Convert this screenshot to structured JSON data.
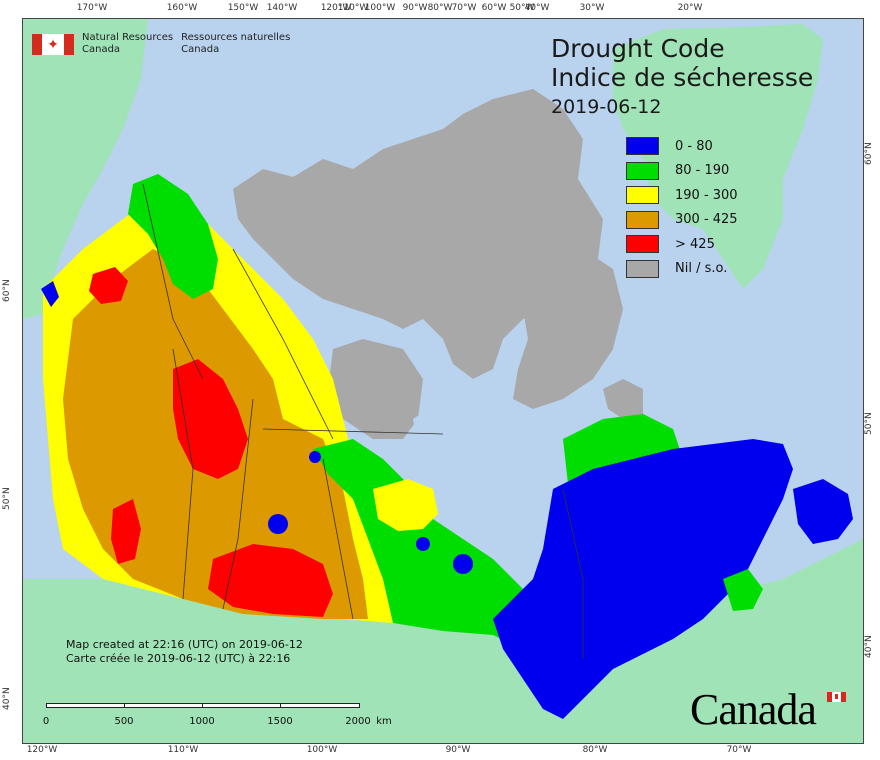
{
  "agency": {
    "en_line1": "Natural Resources",
    "en_line2": "Canada",
    "fr_line1": "Ressources naturelles",
    "fr_line2": "Canada"
  },
  "title": {
    "line1": "Drought Code",
    "line2": "Indice de sécheresse",
    "date": "2019-06-12"
  },
  "legend": [
    {
      "label": "0 - 80",
      "color": "#0000ee"
    },
    {
      "label": "80 - 190",
      "color": "#00dd00"
    },
    {
      "label": "190 - 300",
      "color": "#ffff00"
    },
    {
      "label": "300 - 425",
      "color": "#dd9900"
    },
    {
      "label": "> 425",
      "color": "#ff0000"
    },
    {
      "label": "Nil / s.o.",
      "color": "#a8a8a8"
    }
  ],
  "note": {
    "line1": "Map created at 22:16 (UTC) on 2019-06-12",
    "line2": "Carte créée le 2019-06-12 (UTC) à 22:16"
  },
  "scalebar": {
    "labels": [
      "0",
      "500",
      "1000",
      "1500",
      "2000"
    ],
    "unit": "km"
  },
  "wordmark": "Canada",
  "colors": {
    "water": "#b9d3ee",
    "foreign_land": "#9fe3b7",
    "no_data": "#a8a8a8"
  },
  "graticule": {
    "top": [
      "170°W",
      "160°W",
      "150°W",
      "140°W",
      "120°W",
      "110°W",
      "100°W",
      "90°W",
      "80°W",
      "70°W",
      "60°W",
      "50°W",
      "40°W",
      "30°W",
      "20°W"
    ],
    "bottom": [
      "120°W",
      "110°W",
      "100°W",
      "90°W",
      "80°W",
      "70°W"
    ],
    "left": [
      "60°N",
      "50°N",
      "40°N"
    ],
    "right": [
      "60°N",
      "50°N",
      "40°N"
    ]
  }
}
